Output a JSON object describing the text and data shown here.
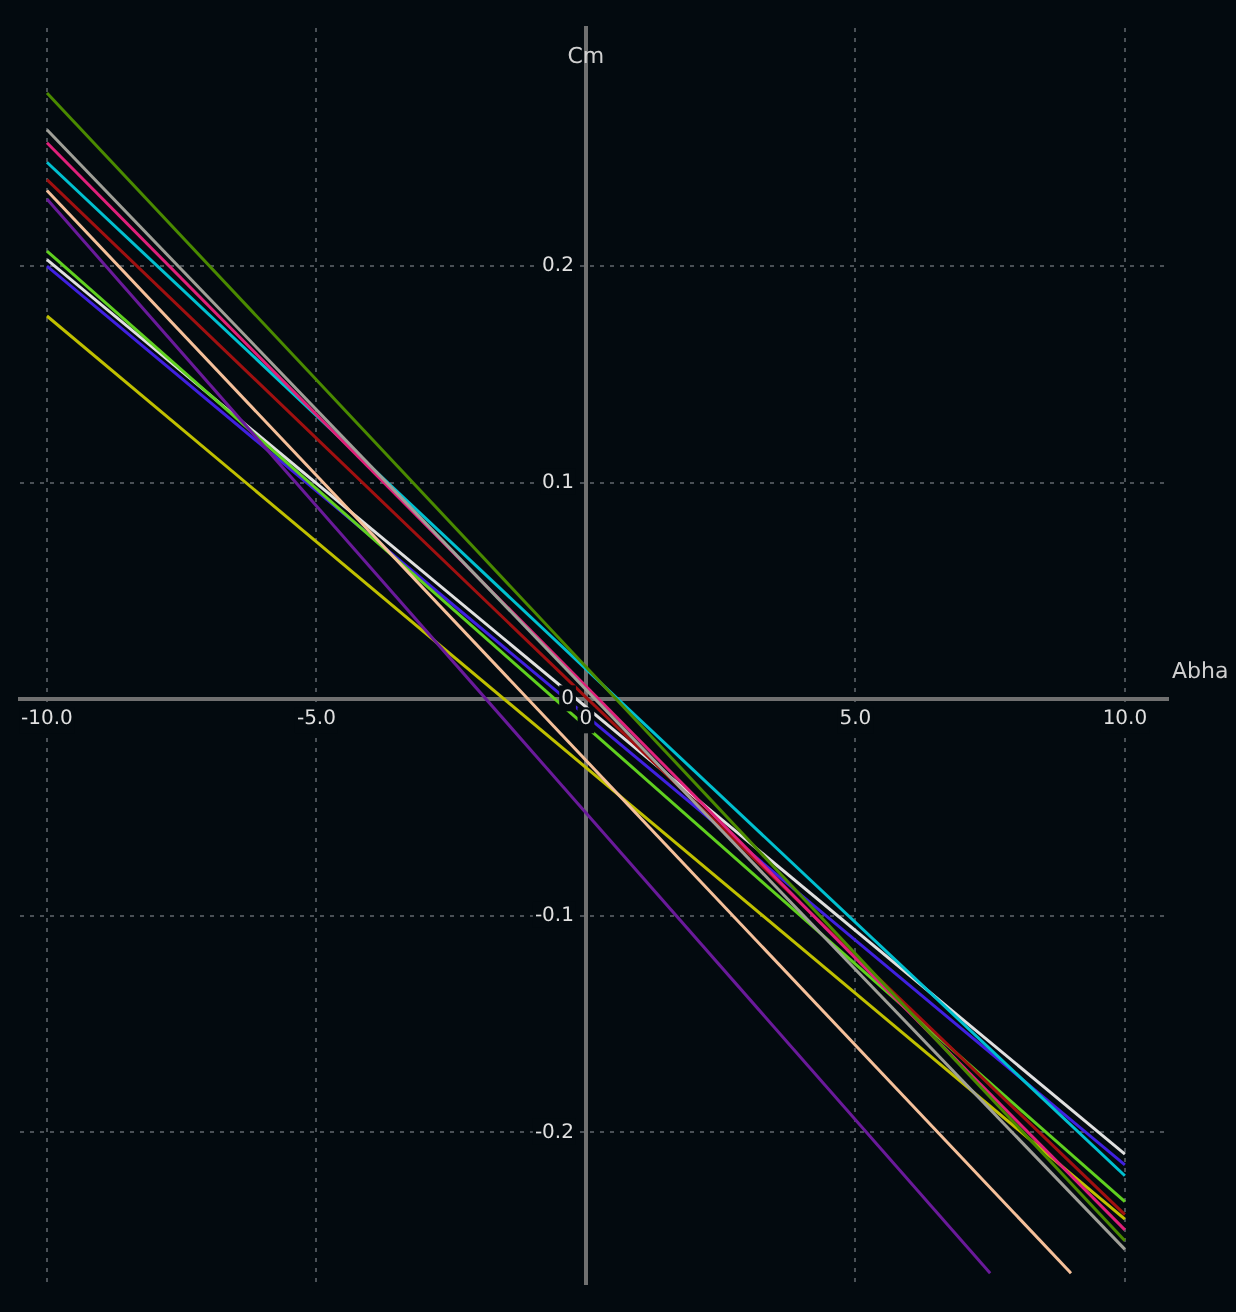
{
  "chart_data": {
    "type": "line",
    "xlabel": "Abha",
    "ylabel": "Cm",
    "xlim": [
      -10.5,
      10.8
    ],
    "ylim": [
      -0.27,
      0.31
    ],
    "xticks": [
      {
        "value": -10,
        "label": "-10.0"
      },
      {
        "value": -5,
        "label": "-5.0"
      },
      {
        "value": 0,
        "label": "0"
      },
      {
        "value": 5,
        "label": "5.0"
      },
      {
        "value": 10,
        "label": "10.0"
      }
    ],
    "yticks": [
      -0.2,
      -0.1,
      0,
      0.1,
      0.2
    ],
    "grid": true,
    "line_style": "solid",
    "marker": "none",
    "series": [
      {
        "color": "#4a8a00",
        "x": [
          -10,
          10
        ],
        "values": [
          0.28,
          -0.25
        ]
      },
      {
        "color": "#a0a098",
        "x": [
          -10,
          10
        ],
        "values": [
          0.263,
          -0.254
        ]
      },
      {
        "color": "#e0207a",
        "x": [
          -10,
          10
        ],
        "values": [
          0.257,
          -0.245
        ]
      },
      {
        "color": "#00c0d0",
        "x": [
          -10,
          10
        ],
        "values": [
          0.248,
          -0.22
        ]
      },
      {
        "color": "#a01010",
        "x": [
          -10,
          10
        ],
        "values": [
          0.24,
          -0.238
        ]
      },
      {
        "color": "#f5c09a",
        "x": [
          -10,
          9
        ],
        "values": [
          0.235,
          -0.265
        ]
      },
      {
        "color": "#6a1a9a",
        "x": [
          -10,
          7.5
        ],
        "values": [
          0.231,
          -0.265
        ]
      },
      {
        "color": "#60d020",
        "x": [
          -10,
          10
        ],
        "values": [
          0.207,
          -0.232
        ]
      },
      {
        "color": "#e0e0e0",
        "x": [
          -10,
          10
        ],
        "values": [
          0.203,
          -0.21
        ]
      },
      {
        "color": "#4020e0",
        "x": [
          -10,
          10
        ],
        "values": [
          0.2,
          -0.215
        ]
      },
      {
        "color": "#c0c000",
        "x": [
          -10,
          10
        ],
        "values": [
          0.177,
          -0.24
        ]
      }
    ]
  }
}
